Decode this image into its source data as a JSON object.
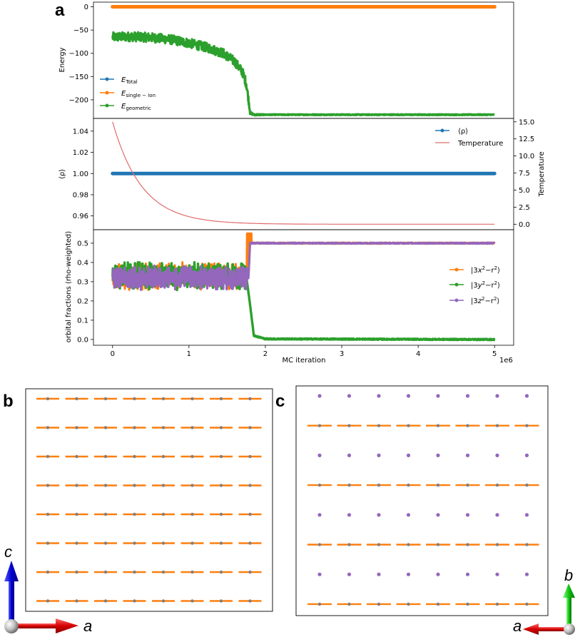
{
  "panels": {
    "a": "a",
    "b": "b",
    "c": "c"
  },
  "colors": {
    "blue": "#1f77b4",
    "orange": "#ff7f0e",
    "green": "#2ca02c",
    "purple": "#9467bd",
    "red": "#d62728",
    "temp": "#e06c6c"
  },
  "chart_data": [
    {
      "type": "line",
      "title": "",
      "xlabel": "",
      "ylabel": "Energy",
      "xlim": [
        -0.25,
        5.25
      ],
      "ylim": [
        -240,
        10
      ],
      "yticks": [
        0,
        -50,
        -100,
        -150,
        -200
      ],
      "ytick_labels": [
        "0",
        "−50",
        "−100",
        "−150",
        "−200"
      ],
      "legend_position": "lower-left",
      "series": [
        {
          "name": "E_Total",
          "label_main": "E",
          "label_sub": "Total",
          "color": "#1f77b4",
          "x": [
            0,
            5
          ],
          "y": [
            0,
            0
          ]
        },
        {
          "name": "E_single-ion",
          "label_main": "E",
          "label_sub": "single − ion",
          "color": "#ff7f0e",
          "x": [
            0,
            5
          ],
          "y": [
            0,
            0
          ]
        },
        {
          "name": "E_geometric",
          "label_main": "E",
          "label_sub": "geometric",
          "color": "#2ca02c",
          "x": [
            0,
            0.25,
            0.5,
            0.75,
            1.0,
            1.25,
            1.45,
            1.6,
            1.7,
            1.75,
            1.78,
            1.8,
            1.85,
            2.0,
            3.0,
            4.0,
            5.0
          ],
          "y": [
            -65,
            -64,
            -66,
            -70,
            -78,
            -88,
            -100,
            -118,
            -140,
            -165,
            -200,
            -228,
            -232,
            -232,
            -232,
            -232,
            -232
          ],
          "noise": [
            10,
            10,
            10,
            10,
            10,
            10,
            10,
            10,
            10,
            10,
            8,
            3,
            2,
            1,
            1,
            1,
            1
          ]
        }
      ]
    },
    {
      "type": "line",
      "title": "",
      "xlabel": "",
      "ylabel": "⟨ρ⟩",
      "ylabel_right": "Temperature",
      "xlim": [
        -0.25,
        5.25
      ],
      "ylim": [
        0.947,
        1.052
      ],
      "yticks": [
        0.96,
        0.98,
        1.0,
        1.02,
        1.04
      ],
      "ytick_labels": [
        "0.96",
        "0.98",
        "1.00",
        "1.02",
        "1.04"
      ],
      "ylim_right": [
        -0.8,
        15.5
      ],
      "yticks_right": [
        0.0,
        2.5,
        5.0,
        7.5,
        10.0,
        12.5,
        15.0
      ],
      "ytick_labels_right": [
        "0.0",
        "2.5",
        "5.0",
        "7.5",
        "10.0",
        "12.5",
        "15.0"
      ],
      "legend_position": "top-right",
      "series": [
        {
          "name": "⟨ρ⟩",
          "color": "#1f77b4",
          "axis": "left",
          "x": [
            0,
            5
          ],
          "y": [
            1.0,
            1.0
          ]
        },
        {
          "name": "Temperature",
          "color": "#e06c6c",
          "axis": "right",
          "model": "exponential-decay",
          "T0": 15.0,
          "decay_rate": 2.6,
          "x": [
            0,
            5
          ]
        }
      ]
    },
    {
      "type": "line",
      "title": "",
      "xlabel": "MC iteration",
      "x_multiplier": "1e6",
      "ylabel": "orbital fractions (rho-weighted)",
      "xlim": [
        -0.25,
        5.25
      ],
      "xticks": [
        0,
        1,
        2,
        3,
        4,
        5
      ],
      "xtick_labels": [
        "0",
        "1",
        "2",
        "3",
        "4",
        "5"
      ],
      "ylim": [
        -0.03,
        0.57
      ],
      "yticks": [
        0.0,
        0.1,
        0.2,
        0.3,
        0.4,
        0.5
      ],
      "ytick_labels": [
        "0.0",
        "0.1",
        "0.2",
        "0.3",
        "0.4",
        "0.5"
      ],
      "legend_position": "right",
      "series": [
        {
          "name": "|3x²−r²⟩",
          "label_pre": "|3",
          "label_var": "x",
          "label_post": "−r",
          "label_end": "⟩",
          "color": "#ff7f0e",
          "x": [
            0,
            1.78,
            1.8,
            5
          ],
          "y": [
            0.33,
            0.33,
            0.5,
            0.5
          ],
          "noise_before": 0.075,
          "spike": 0.55
        },
        {
          "name": "|3y²−r²⟩",
          "label_pre": "|3",
          "label_var": "y",
          "label_post": "−r",
          "label_end": "⟩",
          "color": "#2ca02c",
          "x": [
            0,
            1.75,
            1.8,
            1.85,
            2.0,
            5
          ],
          "y": [
            0.33,
            0.33,
            0.18,
            0.02,
            0.003,
            0.0
          ],
          "noise_before": 0.075
        },
        {
          "name": "|3z²−r²⟩",
          "label_pre": "|3",
          "label_var": "z",
          "label_post": "−r",
          "label_end": "⟩",
          "color": "#9467bd",
          "x": [
            0,
            1.78,
            1.8,
            5
          ],
          "y": [
            0.32,
            0.32,
            0.5,
            0.5
          ],
          "noise_before": 0.065
        }
      ]
    },
    {
      "type": "scatter",
      "title": "",
      "description_axes": {
        "horizontal": "a",
        "vertical": "c"
      },
      "grid": {
        "cols": 8,
        "rows": 8
      },
      "row_orbitals": [
        "x",
        "x",
        "x",
        "x",
        "x",
        "x",
        "x",
        "x"
      ],
      "colors": {
        "bar": "#ff7f0e",
        "dot": "#7f7f7f"
      }
    },
    {
      "type": "scatter",
      "title": "",
      "description_axes": {
        "horizontal": "a",
        "vertical": "b"
      },
      "grid": {
        "cols": 8,
        "rows": 8
      },
      "row_orbitals": [
        "z",
        "x",
        "z",
        "x",
        "z",
        "x",
        "z",
        "x"
      ],
      "colors": {
        "bar": "#ff7f0e",
        "dot": "#9467bd",
        "center": "#7f7f7f"
      }
    }
  ],
  "axes_triads": {
    "b": {
      "horizontal": "a",
      "vertical": "c"
    },
    "c": {
      "horizontal": "a",
      "vertical": "b"
    }
  }
}
